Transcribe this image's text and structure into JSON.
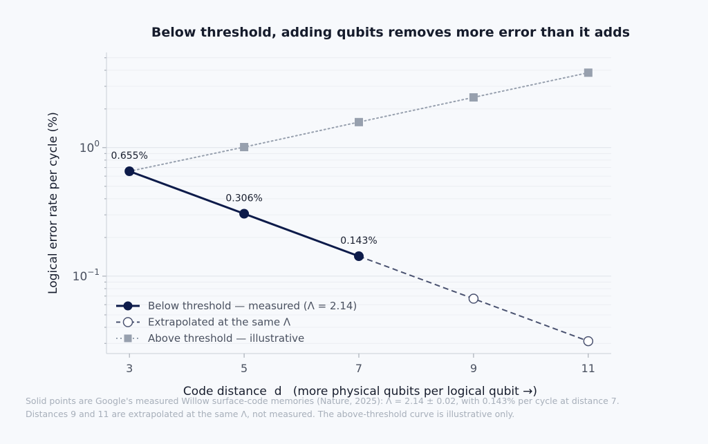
{
  "chart_data": {
    "type": "line",
    "title": "Below threshold, adding qubits removes more error than it adds",
    "xlabel": "Code distance  d   (more physical qubits per logical qubit →)",
    "ylabel": "Logical error rate per cycle  (%)",
    "x_ticks": [
      3,
      5,
      7,
      9,
      11
    ],
    "y_scale": "log",
    "y_ticks": [
      {
        "value": 0.1,
        "base": "10",
        "exp": "−1"
      },
      {
        "value": 1,
        "base": "10",
        "exp": "0"
      }
    ],
    "ylim": [
      0.025,
      5.5
    ],
    "xlim": [
      2.6,
      11.4
    ],
    "grid": true,
    "legend_position": "bottom-left",
    "series": [
      {
        "name": "Below threshold — measured (Λ = 2.14)",
        "x": [
          3,
          5,
          7
        ],
        "y": [
          0.655,
          0.306,
          0.143
        ],
        "color": "#0d1b4a",
        "style": "solid",
        "marker": "filled-circle"
      },
      {
        "name": "Extrapolated at the same Λ",
        "x": [
          7,
          9,
          11
        ],
        "y": [
          0.143,
          0.0668,
          0.0312
        ],
        "color": "#4a5270",
        "style": "dashed",
        "marker": "open-circle"
      },
      {
        "name": "Above threshold — illustrative",
        "x": [
          3,
          5,
          7,
          9,
          11
        ],
        "y": [
          0.655,
          1.01,
          1.58,
          2.46,
          3.83
        ],
        "color": "#97a0ae",
        "style": "dotted",
        "marker": "square"
      }
    ],
    "annotations": [
      {
        "x": 3,
        "y": 0.655,
        "text": "0.655%"
      },
      {
        "x": 5,
        "y": 0.306,
        "text": "0.306%"
      },
      {
        "x": 7,
        "y": 0.143,
        "text": "0.143%"
      }
    ]
  },
  "footnote": {
    "line1": "Solid points are Google's measured Willow surface-code memories (Nature, 2025): Λ = 2.14 ± 0.02, with 0.143% per cycle at distance 7.",
    "line2": "Distances 9 and 11 are extrapolated at the same Λ, not measured. The above-threshold curve is illustrative only."
  }
}
